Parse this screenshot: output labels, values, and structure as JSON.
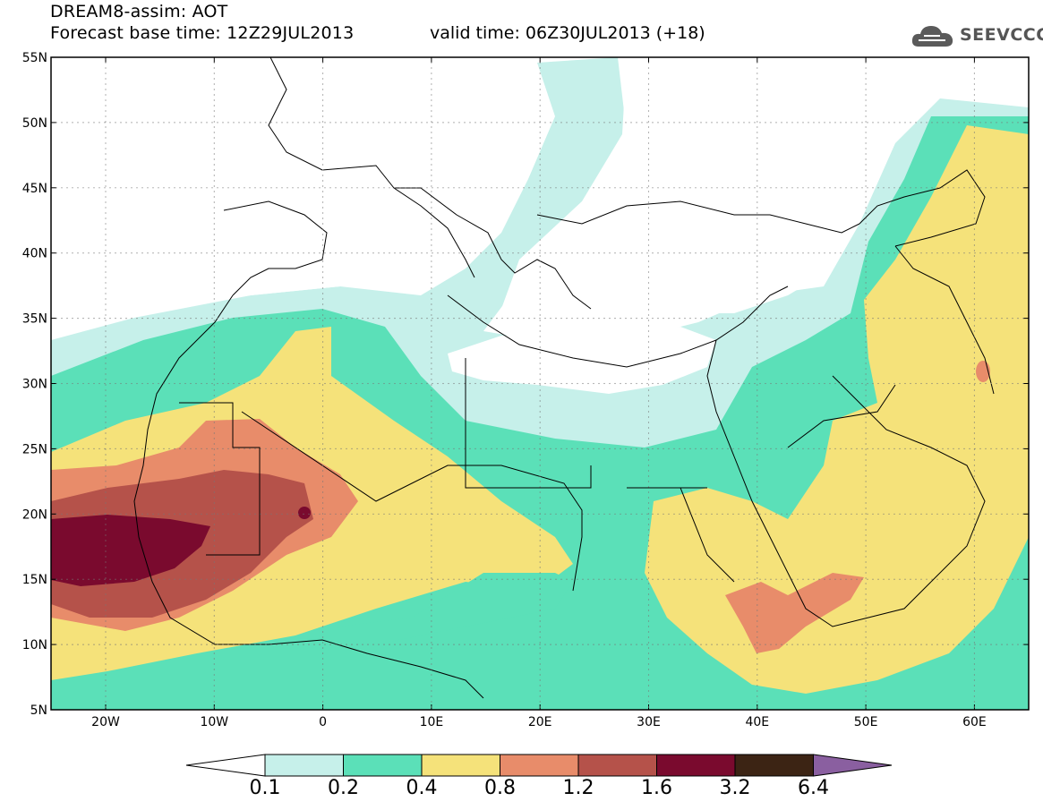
{
  "header": {
    "title": "DREAM8-assim: AOT",
    "base_time": "Forecast base time: 12Z29JUL2013",
    "valid_time": "valid time: 06Z30JUL2013 (+18)"
  },
  "logo": {
    "text": "SEEVCCC",
    "icon": "cloud-icon"
  },
  "axes": {
    "lat_labels": [
      "55N",
      "50N",
      "45N",
      "40N",
      "35N",
      "30N",
      "25N",
      "20N",
      "15N",
      "10N",
      "5N"
    ],
    "lon_labels": [
      "20W",
      "10W",
      "0",
      "10E",
      "20E",
      "30E",
      "40E",
      "50E",
      "60E"
    ]
  },
  "colorbar": {
    "labels": [
      "0.1",
      "0.2",
      "0.4",
      "0.8",
      "1.2",
      "1.6",
      "3.2",
      "6.4"
    ],
    "colors": [
      "#ffffff",
      "#c6f0ea",
      "#5be0b8",
      "#f5e27a",
      "#e88c6a",
      "#b5524a",
      "#7a0a2e",
      "#3c2414",
      "#8a5fa0"
    ]
  }
}
